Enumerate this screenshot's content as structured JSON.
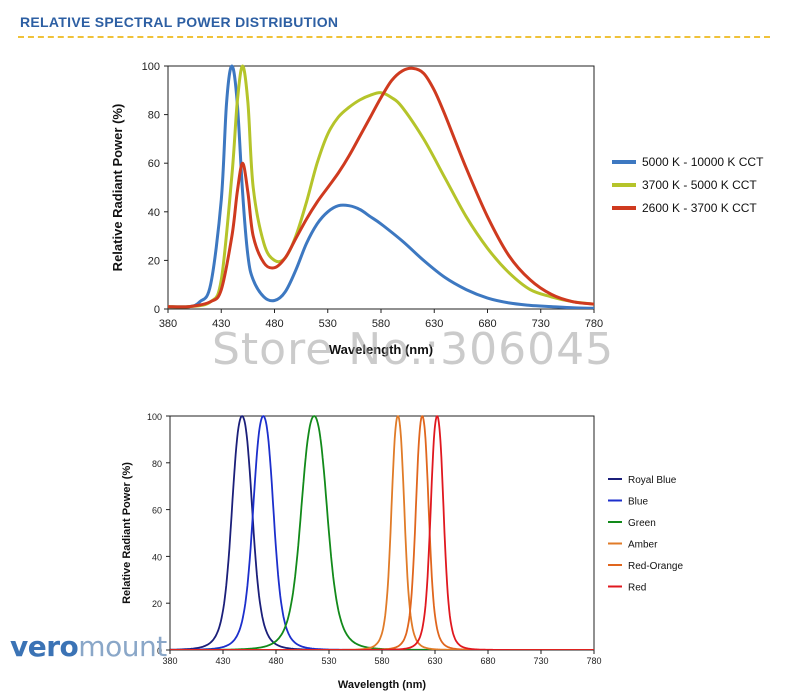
{
  "header": {
    "title": "RELATIVE SPECTRAL POWER DISTRIBUTION",
    "rule_color": "#f0c238",
    "title_color": "#2d5fa3"
  },
  "watermark": {
    "text": "Store No.:306045"
  },
  "brand": {
    "part1": "vero",
    "part2": "mount"
  },
  "chart_data": [
    {
      "type": "line",
      "title": "",
      "xlabel": "Wavelength (nm)",
      "ylabel": "Relative Radiant Power (%)",
      "xlim": [
        380,
        780
      ],
      "ylim": [
        0,
        100
      ],
      "xticks": [
        380,
        430,
        480,
        530,
        580,
        630,
        680,
        730,
        780
      ],
      "yticks": [
        0,
        20,
        40,
        60,
        80,
        100
      ],
      "legend_position": "right",
      "series": [
        {
          "name": "5000 K - 10000 K CCT",
          "color": "#3d78c1",
          "x": [
            380,
            400,
            410,
            420,
            430,
            435,
            440,
            445,
            450,
            455,
            460,
            470,
            480,
            490,
            500,
            510,
            520,
            530,
            540,
            550,
            560,
            570,
            580,
            600,
            620,
            640,
            660,
            680,
            700,
            720,
            740,
            760,
            780
          ],
          "y": [
            1,
            1,
            3,
            10,
            45,
            85,
            100,
            85,
            48,
            22,
            12,
            5,
            3.5,
            7,
            16,
            27,
            35,
            40,
            42.5,
            42.5,
            41,
            38,
            35,
            28,
            20,
            13,
            8,
            4.5,
            2.5,
            1.5,
            1,
            0.5,
            0.3
          ]
        },
        {
          "name": "3700 K - 5000 K CCT",
          "color": "#b5c42a",
          "x": [
            380,
            400,
            420,
            430,
            440,
            445,
            450,
            455,
            460,
            470,
            480,
            490,
            500,
            510,
            520,
            530,
            540,
            550,
            560,
            570,
            580,
            590,
            600,
            620,
            640,
            660,
            680,
            700,
            720,
            740,
            760,
            780
          ],
          "y": [
            1,
            1,
            3,
            12,
            55,
            85,
            100,
            85,
            50,
            27,
            20,
            21,
            30,
            44,
            60,
            72,
            79,
            83,
            86,
            88,
            89,
            87,
            83,
            70,
            54,
            38,
            25,
            15,
            8,
            5,
            3,
            2
          ]
        },
        {
          "name": "2600 K - 3700 K CCT",
          "color": "#cf3a1f",
          "x": [
            380,
            400,
            420,
            430,
            440,
            445,
            450,
            455,
            460,
            470,
            480,
            490,
            500,
            510,
            520,
            530,
            540,
            550,
            560,
            570,
            580,
            590,
            600,
            610,
            620,
            630,
            640,
            660,
            680,
            700,
            720,
            740,
            760,
            780
          ],
          "y": [
            1,
            1,
            3,
            8,
            30,
            48,
            60,
            48,
            30,
            19,
            17,
            21,
            29,
            37,
            44,
            50,
            56,
            63,
            71,
            79,
            87,
            94,
            98,
            99,
            97,
            90,
            80,
            58,
            38,
            22,
            12,
            6,
            3,
            2
          ]
        }
      ]
    },
    {
      "type": "line",
      "title": "",
      "xlabel": "Wavelength (nm)",
      "ylabel": "Relative Radiant Power (%)",
      "xlim": [
        380,
        780
      ],
      "ylim": [
        0,
        100
      ],
      "xticks": [
        380,
        430,
        480,
        530,
        580,
        630,
        680,
        730,
        780
      ],
      "yticks": [
        0,
        20,
        40,
        60,
        80,
        100
      ],
      "legend_position": "right",
      "series": [
        {
          "name": "Royal Blue",
          "color": "#1b1f7a",
          "peak": 448,
          "width": 11
        },
        {
          "name": "Blue",
          "color": "#1c2fcc",
          "peak": 468,
          "width": 11
        },
        {
          "name": "Green",
          "color": "#128a1a",
          "peak": 516,
          "width": 14
        },
        {
          "name": "Amber",
          "color": "#e07b28",
          "peak": 595,
          "width": 7
        },
        {
          "name": "Red-Orange",
          "color": "#e0661e",
          "peak": 618,
          "width": 7
        },
        {
          "name": "Red",
          "color": "#e0181f",
          "peak": 632,
          "width": 7
        }
      ]
    }
  ]
}
